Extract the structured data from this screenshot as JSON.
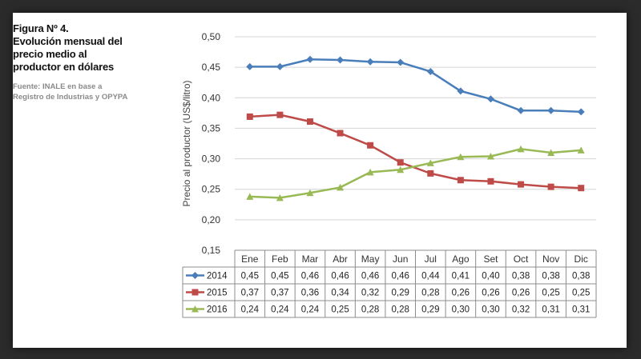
{
  "caption": {
    "label": "Figura Nº 4.",
    "title": "Evolución mensual del precio medio al productor en dólares",
    "source": "Fuente: INALE en base a Registro de Industrias y OPYPA"
  },
  "colors": {
    "2014": "#4a7ebb",
    "2015": "#be4b48",
    "2016": "#98b954"
  },
  "chart_data": {
    "type": "line",
    "title": "Evolución mensual del precio medio al productor en dólares",
    "xlabel": "",
    "ylabel": "Precio al productor (US$/litro)",
    "ylim": [
      0.15,
      0.5
    ],
    "yticks": [
      "0,50",
      "0,45",
      "0,40",
      "0,35",
      "0,30",
      "0,25",
      "0,20",
      "0,15"
    ],
    "ytick_values": [
      0.5,
      0.45,
      0.4,
      0.35,
      0.3,
      0.25,
      0.2,
      0.15
    ],
    "grid": true,
    "categories": [
      "Ene",
      "Feb",
      "Mar",
      "Abr",
      "May",
      "Jun",
      "Jul",
      "Ago",
      "Set",
      "Oct",
      "Nov",
      "Dic"
    ],
    "series": [
      {
        "name": "2014",
        "marker": "diamond",
        "values": [
          0.451,
          0.451,
          0.463,
          0.462,
          0.459,
          0.458,
          0.443,
          0.411,
          0.398,
          0.379,
          0.379,
          0.377
        ],
        "labels": [
          "0,45",
          "0,45",
          "0,46",
          "0,46",
          "0,46",
          "0,46",
          "0,44",
          "0,41",
          "0,40",
          "0,38",
          "0,38",
          "0,38"
        ]
      },
      {
        "name": "2015",
        "marker": "square",
        "values": [
          0.369,
          0.372,
          0.361,
          0.342,
          0.322,
          0.294,
          0.276,
          0.265,
          0.263,
          0.258,
          0.254,
          0.252
        ],
        "labels": [
          "0,37",
          "0,37",
          "0,36",
          "0,34",
          "0,32",
          "0,29",
          "0,28",
          "0,26",
          "0,26",
          "0,26",
          "0,25",
          "0,25"
        ]
      },
      {
        "name": "2016",
        "marker": "triangle",
        "values": [
          0.238,
          0.236,
          0.244,
          0.253,
          0.278,
          0.282,
          0.293,
          0.303,
          0.304,
          0.316,
          0.31,
          0.314
        ],
        "labels": [
          "0,24",
          "0,24",
          "0,24",
          "0,25",
          "0,28",
          "0,28",
          "0,29",
          "0,30",
          "0,30",
          "0,32",
          "0,31",
          "0,31"
        ]
      }
    ]
  }
}
